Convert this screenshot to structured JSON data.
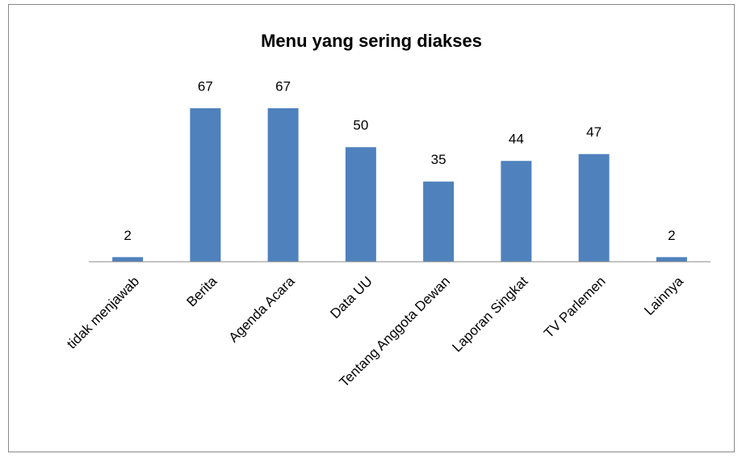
{
  "chart_data": {
    "type": "bar",
    "title": "Menu yang sering diakses",
    "categories": [
      "tidak menjawab",
      "Berita",
      "Agenda Acara",
      "Data UU",
      "Tentang Anggota Dewan",
      "Laporan Singkat",
      "TV Parlemen",
      "Lainnya"
    ],
    "values": [
      2,
      67,
      67,
      50,
      35,
      44,
      47,
      2
    ],
    "color": "#4f81bd",
    "ylim": [
      0,
      70
    ]
  }
}
